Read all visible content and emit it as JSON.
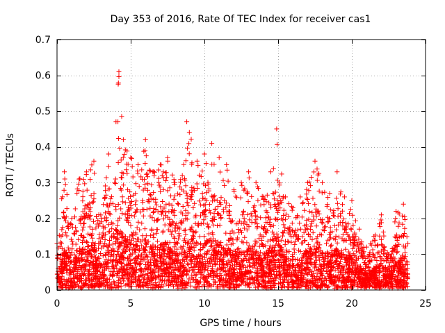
{
  "chart_data": {
    "type": "scatter",
    "title": "Day 353 of 2016, Rate Of TEC Index for receiver cas1",
    "xlabel": "GPS time / hours",
    "ylabel": "ROTI / TECUs",
    "xlim": [
      0,
      25
    ],
    "ylim": [
      0,
      0.7
    ],
    "xticks": [
      0,
      5,
      10,
      15,
      20,
      25
    ],
    "yticks": [
      0,
      0.1,
      0.2,
      0.3,
      0.4,
      0.5,
      0.6,
      0.7
    ],
    "xtick_labels": [
      "0",
      "5",
      "10",
      "15",
      "20",
      "25"
    ],
    "ytick_labels": [
      "0",
      "0.1",
      "0.2",
      "0.3",
      "0.4",
      "0.5",
      "0.6",
      "0.7"
    ],
    "grid": true,
    "marker": "+",
    "color": "#ff0000",
    "series": [
      {
        "name": "ROTI",
        "description": "dense scatter of ROTI values sampled across 0–23.8 h; envelope (hour, approx max ROTI)",
        "envelope": [
          [
            0.0,
            0.13
          ],
          [
            0.5,
            0.33
          ],
          [
            1.0,
            0.2
          ],
          [
            1.5,
            0.31
          ],
          [
            2.0,
            0.33
          ],
          [
            2.5,
            0.36
          ],
          [
            3.0,
            0.2
          ],
          [
            3.5,
            0.38
          ],
          [
            4.0,
            0.47
          ],
          [
            4.2,
            0.61
          ],
          [
            4.5,
            0.42
          ],
          [
            5.0,
            0.37
          ],
          [
            5.5,
            0.35
          ],
          [
            6.0,
            0.42
          ],
          [
            6.5,
            0.33
          ],
          [
            7.0,
            0.35
          ],
          [
            7.5,
            0.37
          ],
          [
            8.0,
            0.3
          ],
          [
            8.5,
            0.32
          ],
          [
            8.8,
            0.47
          ],
          [
            9.5,
            0.36
          ],
          [
            10.0,
            0.38
          ],
          [
            10.5,
            0.41
          ],
          [
            11.0,
            0.37
          ],
          [
            11.5,
            0.35
          ],
          [
            12.0,
            0.28
          ],
          [
            12.5,
            0.3
          ],
          [
            13.0,
            0.33
          ],
          [
            13.5,
            0.3
          ],
          [
            14.0,
            0.26
          ],
          [
            14.5,
            0.33
          ],
          [
            14.9,
            0.45
          ],
          [
            15.5,
            0.26
          ],
          [
            16.0,
            0.23
          ],
          [
            16.5,
            0.26
          ],
          [
            17.0,
            0.3
          ],
          [
            17.5,
            0.36
          ],
          [
            18.0,
            0.3
          ],
          [
            18.5,
            0.27
          ],
          [
            19.0,
            0.33
          ],
          [
            19.5,
            0.26
          ],
          [
            20.0,
            0.25
          ],
          [
            20.5,
            0.17
          ],
          [
            21.0,
            0.12
          ],
          [
            21.5,
            0.15
          ],
          [
            22.0,
            0.21
          ],
          [
            22.5,
            0.1
          ],
          [
            23.0,
            0.22
          ],
          [
            23.5,
            0.24
          ],
          [
            23.8,
            0.13
          ]
        ]
      }
    ]
  }
}
